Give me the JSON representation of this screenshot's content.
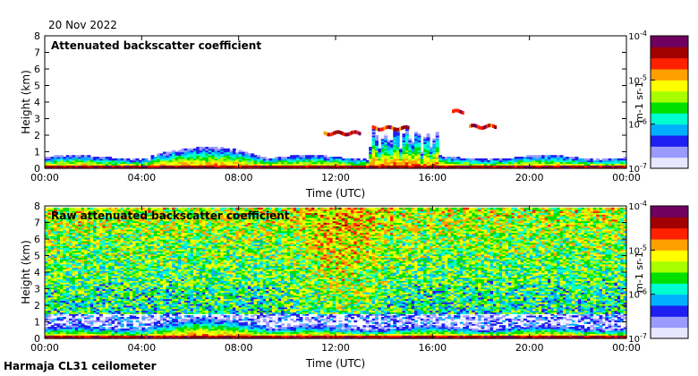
{
  "header": {
    "date": "20 Nov 2022"
  },
  "footer": {
    "instrument": "Harmaja CL31 ceilometer"
  },
  "colors": {
    "scale": [
      "#e6e6ff",
      "#9a9aff",
      "#1e1ef0",
      "#00b0ff",
      "#00ffd0",
      "#00e000",
      "#a8ff00",
      "#ffff00",
      "#ffa000",
      "#ff2000",
      "#a00000",
      "#700060"
    ]
  },
  "chart_data": [
    {
      "type": "heatmap",
      "title": "Attenuated backscatter coefficient",
      "xlabel": "Time (UTC)",
      "ylabel": "Height (km)",
      "xlim": [
        0,
        24
      ],
      "ylim": [
        0,
        8
      ],
      "xticks": [
        0,
        4,
        8,
        12,
        16,
        20,
        24
      ],
      "xtick_labels": [
        "00:00",
        "04:00",
        "08:00",
        "12:00",
        "16:00",
        "20:00",
        "00:00"
      ],
      "yticks": [
        0,
        1,
        2,
        3,
        4,
        5,
        6,
        7,
        8
      ],
      "ytick_labels": [
        "0",
        "1",
        "2",
        "3",
        "4",
        "5",
        "6",
        "7",
        "8"
      ],
      "colorbar": {
        "label": "m^-1 sr^-1",
        "range": [
          1e-07,
          0.0001
        ],
        "scale": "log",
        "ticks": [
          "10^-4",
          "10^-5",
          "10^-6",
          "10^-7"
        ]
      },
      "layers": [
        {
          "feature": "boundary layer aerosol",
          "t_start": 0,
          "t_end": 24,
          "top_km": 0.6
        },
        {
          "feature": "elevated aerosol",
          "t_start": 4.3,
          "t_end": 9.0,
          "top_km": 1.2
        },
        {
          "feature": "cloud layer",
          "t_start": 11.5,
          "t_end": 13.0,
          "height_km": 2.1
        },
        {
          "feature": "cloud layer",
          "t_start": 13.5,
          "t_end": 15.0,
          "height_km": 2.4
        },
        {
          "feature": "cloud layer",
          "t_start": 16.8,
          "t_end": 17.2,
          "height_km": 3.4
        },
        {
          "feature": "cloud layer",
          "t_start": 17.5,
          "t_end": 18.6,
          "height_km": 2.5
        },
        {
          "feature": "precipitation / clutter",
          "t_start": 13.3,
          "t_end": 16.2,
          "top_km": 2.5
        }
      ]
    },
    {
      "type": "heatmap",
      "title": "Raw attenuated backscatter coefficient",
      "xlabel": "Time (UTC)",
      "ylabel": "Height (km)",
      "xlim": [
        0,
        24
      ],
      "ylim": [
        0,
        8
      ],
      "xticks": [
        0,
        4,
        8,
        12,
        16,
        20,
        24
      ],
      "xtick_labels": [
        "00:00",
        "04:00",
        "08:00",
        "12:00",
        "16:00",
        "20:00",
        "00:00"
      ],
      "yticks": [
        0,
        1,
        2,
        3,
        4,
        5,
        6,
        7,
        8
      ],
      "ytick_labels": [
        "0",
        "1",
        "2",
        "3",
        "4",
        "5",
        "6",
        "7",
        "8"
      ],
      "colorbar": {
        "label": "m^-1 sr^-1",
        "range": [
          1e-07,
          0.0001
        ],
        "scale": "log",
        "ticks": [
          "10^-4",
          "10^-5",
          "10^-6",
          "10^-7"
        ]
      },
      "layers": [
        {
          "feature": "noise field",
          "t_start": 0,
          "t_end": 24,
          "bottom_km": 1.5,
          "top_km": 7.8
        },
        {
          "feature": "boundary layer aerosol",
          "t_start": 0,
          "t_end": 24,
          "top_km": 0.6
        },
        {
          "feature": "elevated aerosol",
          "t_start": 4.3,
          "t_end": 9.0,
          "top_km": 1.2
        }
      ]
    }
  ]
}
